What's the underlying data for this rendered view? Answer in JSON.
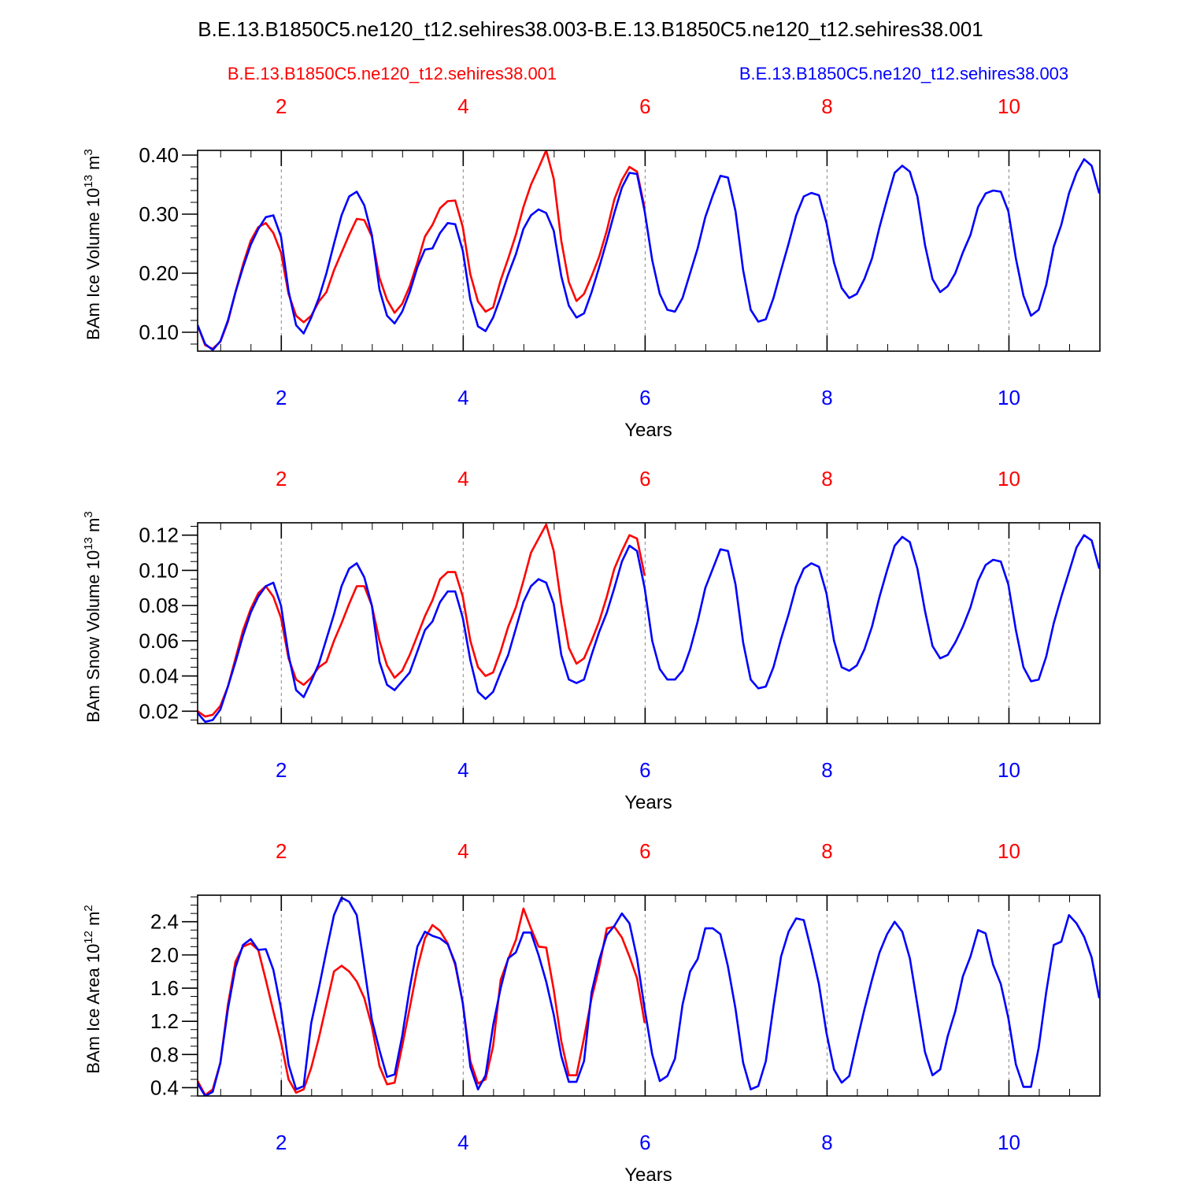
{
  "figure": {
    "title": "B.E.13.B1850C5.ne120_t12.sehires38.003-B.E.13.B1850C5.ne120_t12.sehires38.001",
    "legend_left": "B.E.13.B1850C5.ne120_t12.sehires38.001",
    "legend_right": "B.E.13.B1850C5.ne120_t12.sehires38.003",
    "colors": {
      "run001": "#ff0000",
      "run003": "#0000ff",
      "axis": "#000000",
      "grid": "#888888"
    }
  },
  "chart_data": [
    {
      "type": "line",
      "ylabel_main": "BAm Ice Volume 10",
      "ylabel_exp": "13",
      "ylabel_unit": " m",
      "ylabel_unit_exp": "3",
      "xlabel": "Years",
      "xlim": [
        1.08,
        11.0
      ],
      "ylim": [
        0.068,
        0.408
      ],
      "yticks": [
        0.1,
        0.2,
        0.3,
        0.4
      ],
      "ytick_labels": [
        "0.10",
        "0.20",
        "0.30",
        "0.40"
      ],
      "yminor_step": 0.02,
      "xticks": [
        2,
        4,
        6,
        8,
        10
      ],
      "xtick_labels_top": [
        "2",
        "4",
        "6",
        "8",
        "10"
      ],
      "xtick_labels_bottom": [
        "2",
        "4",
        "6",
        "8",
        "10"
      ],
      "series": [
        {
          "name": "B.E.13.B1850C5.ne120_t12.sehires38.001",
          "color": "#ff0000",
          "x_start": 1.08,
          "x_step": 0.0833,
          "values": [
            0.112,
            0.078,
            0.072,
            0.084,
            0.118,
            0.168,
            0.215,
            0.255,
            0.278,
            0.285,
            0.268,
            0.235,
            0.165,
            0.128,
            0.117,
            0.128,
            0.152,
            0.168,
            0.205,
            0.235,
            0.265,
            0.292,
            0.29,
            0.262,
            0.192,
            0.155,
            0.133,
            0.148,
            0.178,
            0.218,
            0.262,
            0.282,
            0.31,
            0.322,
            0.323,
            0.278,
            0.198,
            0.152,
            0.135,
            0.142,
            0.188,
            0.225,
            0.265,
            0.312,
            0.35,
            0.378,
            0.408,
            0.36,
            0.255,
            0.185,
            0.153,
            0.165,
            0.195,
            0.228,
            0.272,
            0.325,
            0.358,
            0.38,
            0.372,
            0.31
          ]
        },
        {
          "name": "B.E.13.B1850C5.ne120_t12.sehires38.003",
          "color": "#0000ff",
          "x_start": 1.08,
          "x_step": 0.0833,
          "values": [
            0.112,
            0.08,
            0.07,
            0.085,
            0.12,
            0.168,
            0.21,
            0.248,
            0.275,
            0.295,
            0.298,
            0.262,
            0.17,
            0.112,
            0.098,
            0.125,
            0.158,
            0.2,
            0.25,
            0.298,
            0.33,
            0.338,
            0.315,
            0.265,
            0.172,
            0.128,
            0.115,
            0.135,
            0.168,
            0.21,
            0.24,
            0.242,
            0.268,
            0.285,
            0.283,
            0.238,
            0.155,
            0.11,
            0.102,
            0.125,
            0.16,
            0.198,
            0.232,
            0.275,
            0.298,
            0.308,
            0.302,
            0.272,
            0.195,
            0.145,
            0.125,
            0.132,
            0.168,
            0.21,
            0.255,
            0.302,
            0.345,
            0.37,
            0.368,
            0.305,
            0.222,
            0.165,
            0.138,
            0.135,
            0.158,
            0.2,
            0.242,
            0.295,
            0.332,
            0.365,
            0.362,
            0.305,
            0.205,
            0.138,
            0.118,
            0.122,
            0.158,
            0.205,
            0.25,
            0.298,
            0.33,
            0.336,
            0.332,
            0.285,
            0.218,
            0.175,
            0.158,
            0.165,
            0.19,
            0.225,
            0.278,
            0.325,
            0.37,
            0.382,
            0.372,
            0.33,
            0.248,
            0.19,
            0.168,
            0.178,
            0.2,
            0.235,
            0.265,
            0.312,
            0.335,
            0.34,
            0.338,
            0.305,
            0.225,
            0.162,
            0.128,
            0.138,
            0.18,
            0.245,
            0.282,
            0.335,
            0.37,
            0.393,
            0.382,
            0.335
          ]
        }
      ]
    },
    {
      "type": "line",
      "ylabel_main": "BAm Snow Volume 10",
      "ylabel_exp": "13",
      "ylabel_unit": " m",
      "ylabel_unit_exp": "3",
      "xlabel": "Years",
      "xlim": [
        1.08,
        11.0
      ],
      "ylim": [
        0.013,
        0.127
      ],
      "yticks": [
        0.02,
        0.04,
        0.06,
        0.08,
        0.1,
        0.12
      ],
      "ytick_labels": [
        "0.02",
        "0.04",
        "0.06",
        "0.08",
        "0.10",
        "0.12"
      ],
      "yminor_step": 0.005,
      "xticks": [
        2,
        4,
        6,
        8,
        10
      ],
      "xtick_labels_top": [
        "2",
        "4",
        "6",
        "8",
        "10"
      ],
      "xtick_labels_bottom": [
        "2",
        "4",
        "6",
        "8",
        "10"
      ],
      "series": [
        {
          "name": "B.E.13.B1850C5.ne120_t12.sehires38.001",
          "color": "#ff0000",
          "x_start": 1.08,
          "x_step": 0.0833,
          "values": [
            0.02,
            0.017,
            0.018,
            0.023,
            0.034,
            0.05,
            0.066,
            0.078,
            0.087,
            0.091,
            0.085,
            0.073,
            0.05,
            0.038,
            0.035,
            0.039,
            0.045,
            0.048,
            0.06,
            0.07,
            0.081,
            0.091,
            0.091,
            0.08,
            0.06,
            0.046,
            0.039,
            0.043,
            0.052,
            0.063,
            0.074,
            0.083,
            0.095,
            0.099,
            0.099,
            0.085,
            0.06,
            0.045,
            0.04,
            0.042,
            0.054,
            0.068,
            0.079,
            0.094,
            0.11,
            0.118,
            0.126,
            0.111,
            0.081,
            0.056,
            0.047,
            0.05,
            0.06,
            0.071,
            0.085,
            0.101,
            0.111,
            0.12,
            0.118,
            0.097
          ]
        },
        {
          "name": "B.E.13.B1850C5.ne120_t12.sehires38.003",
          "color": "#0000ff",
          "x_start": 1.08,
          "x_step": 0.0833,
          "values": [
            0.019,
            0.014,
            0.015,
            0.021,
            0.034,
            0.048,
            0.063,
            0.076,
            0.085,
            0.091,
            0.093,
            0.08,
            0.052,
            0.032,
            0.028,
            0.037,
            0.047,
            0.061,
            0.075,
            0.091,
            0.101,
            0.104,
            0.096,
            0.08,
            0.048,
            0.035,
            0.032,
            0.037,
            0.042,
            0.054,
            0.066,
            0.071,
            0.082,
            0.088,
            0.088,
            0.073,
            0.049,
            0.031,
            0.027,
            0.031,
            0.042,
            0.052,
            0.067,
            0.082,
            0.091,
            0.095,
            0.093,
            0.081,
            0.052,
            0.038,
            0.036,
            0.038,
            0.052,
            0.065,
            0.076,
            0.09,
            0.105,
            0.114,
            0.111,
            0.09,
            0.06,
            0.044,
            0.038,
            0.038,
            0.043,
            0.055,
            0.071,
            0.09,
            0.101,
            0.112,
            0.111,
            0.092,
            0.059,
            0.038,
            0.033,
            0.034,
            0.045,
            0.061,
            0.075,
            0.091,
            0.101,
            0.104,
            0.102,
            0.087,
            0.06,
            0.045,
            0.043,
            0.046,
            0.055,
            0.068,
            0.085,
            0.1,
            0.114,
            0.119,
            0.116,
            0.101,
            0.077,
            0.057,
            0.05,
            0.052,
            0.059,
            0.068,
            0.079,
            0.094,
            0.103,
            0.106,
            0.105,
            0.092,
            0.066,
            0.045,
            0.037,
            0.038,
            0.051,
            0.07,
            0.085,
            0.099,
            0.113,
            0.12,
            0.117,
            0.101
          ]
        }
      ]
    },
    {
      "type": "line",
      "ylabel_main": "BAm Ice Area 10",
      "ylabel_exp": "12",
      "ylabel_unit": " m",
      "ylabel_unit_exp": "2",
      "xlabel": "Years",
      "xlim": [
        1.08,
        11.0
      ],
      "ylim": [
        0.3,
        2.72
      ],
      "yticks": [
        0.4,
        0.8,
        1.2,
        1.6,
        2.0,
        2.4
      ],
      "ytick_labels": [
        "0.4",
        "0.8",
        "1.2",
        "1.6",
        "2.0",
        "2.4"
      ],
      "yminor_step": 0.1,
      "xticks": [
        2,
        4,
        6,
        8,
        10
      ],
      "xtick_labels_top": [
        "2",
        "4",
        "6",
        "8",
        "10"
      ],
      "xtick_labels_bottom": [
        "2",
        "4",
        "6",
        "8",
        "10"
      ],
      "series": [
        {
          "name": "B.E.13.B1850C5.ne120_t12.sehires38.001",
          "color": "#ff0000",
          "x_start": 1.08,
          "x_step": 0.0833,
          "values": [
            0.48,
            0.31,
            0.38,
            0.7,
            1.4,
            1.92,
            2.1,
            2.14,
            2.06,
            1.7,
            1.32,
            0.95,
            0.5,
            0.34,
            0.38,
            0.64,
            1.0,
            1.4,
            1.8,
            1.87,
            1.8,
            1.68,
            1.48,
            1.14,
            0.66,
            0.44,
            0.46,
            0.9,
            1.36,
            1.84,
            2.2,
            2.36,
            2.29,
            2.14,
            1.88,
            1.42,
            0.72,
            0.45,
            0.5,
            0.9,
            1.7,
            1.95,
            2.18,
            2.56,
            2.32,
            2.1,
            2.09,
            1.58,
            0.96,
            0.55,
            0.55,
            1.0,
            1.48,
            1.85,
            2.32,
            2.34,
            2.21,
            1.98,
            1.72,
            1.18
          ]
        },
        {
          "name": "B.E.13.B1850C5.ne120_t12.sehires38.003",
          "color": "#0000ff",
          "x_start": 1.08,
          "x_step": 0.0833,
          "values": [
            0.45,
            0.3,
            0.35,
            0.7,
            1.35,
            1.85,
            2.12,
            2.19,
            2.06,
            2.07,
            1.82,
            1.35,
            0.68,
            0.38,
            0.42,
            1.18,
            1.6,
            2.05,
            2.48,
            2.69,
            2.64,
            2.48,
            1.85,
            1.22,
            0.85,
            0.53,
            0.56,
            1.02,
            1.6,
            2.1,
            2.28,
            2.23,
            2.2,
            2.13,
            1.9,
            1.42,
            0.65,
            0.38,
            0.55,
            1.15,
            1.6,
            1.96,
            2.03,
            2.27,
            2.27,
            2.0,
            1.68,
            1.28,
            0.78,
            0.47,
            0.47,
            0.72,
            1.55,
            1.94,
            2.24,
            2.35,
            2.5,
            2.38,
            1.96,
            1.35,
            0.8,
            0.48,
            0.54,
            0.75,
            1.4,
            1.8,
            1.95,
            2.32,
            2.32,
            2.25,
            1.86,
            1.35,
            0.7,
            0.38,
            0.42,
            0.72,
            1.38,
            1.98,
            2.28,
            2.44,
            2.42,
            2.05,
            1.65,
            1.06,
            0.62,
            0.46,
            0.54,
            0.95,
            1.34,
            1.7,
            2.03,
            2.25,
            2.4,
            2.28,
            1.96,
            1.4,
            0.83,
            0.55,
            0.62,
            1.02,
            1.32,
            1.74,
            1.98,
            2.3,
            2.26,
            1.88,
            1.65,
            1.24,
            0.68,
            0.41,
            0.41,
            0.88,
            1.55,
            2.12,
            2.16,
            2.48,
            2.38,
            2.22,
            1.97,
            1.48
          ]
        }
      ]
    }
  ]
}
